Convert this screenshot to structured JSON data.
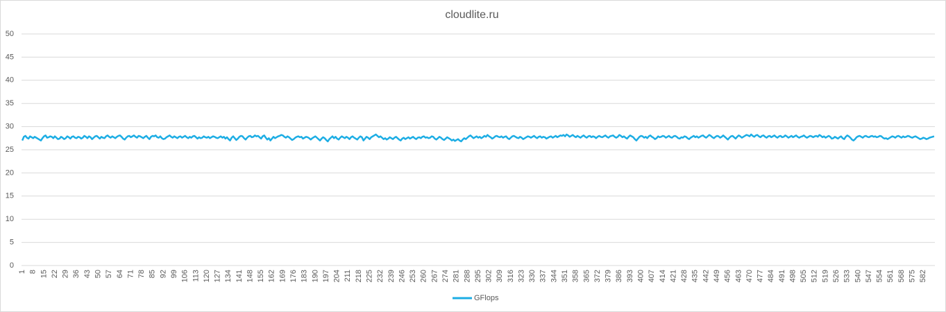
{
  "chart_data": {
    "type": "line",
    "title": "cloudlite.ru",
    "categories": [
      1,
      null,
      null,
      null,
      null,
      null,
      null,
      8,
      null,
      null,
      null,
      null,
      null,
      null,
      15,
      null,
      null,
      null,
      null,
      null,
      null,
      22,
      null,
      null,
      null,
      null,
      null,
      null,
      29,
      null,
      null,
      null,
      null,
      null,
      null,
      36,
      null,
      null,
      null,
      null,
      null,
      null,
      43,
      null,
      null,
      null,
      null,
      null,
      null,
      50,
      null,
      null,
      null,
      null,
      null,
      null,
      57,
      null,
      null,
      null,
      null,
      null,
      null,
      64,
      null,
      null,
      null,
      null,
      null,
      null,
      71,
      null,
      null,
      null,
      null,
      null,
      null,
      78,
      null,
      null,
      null,
      null,
      null,
      null,
      85,
      null,
      null,
      null,
      null,
      null,
      null,
      92,
      null,
      null,
      null,
      null,
      null,
      null,
      99,
      null,
      null,
      null,
      null,
      null,
      null,
      106,
      null,
      null,
      null,
      null,
      null,
      null,
      113,
      null,
      null,
      null,
      null,
      null,
      null,
      120,
      null,
      null,
      null,
      null,
      null,
      null,
      127,
      null,
      null,
      null,
      null,
      null,
      null,
      134,
      null,
      null,
      null,
      null,
      null,
      null,
      141,
      null,
      null,
      null,
      null,
      null,
      null,
      148,
      null,
      null,
      null,
      null,
      null,
      null,
      155,
      null,
      null,
      null,
      null,
      null,
      null,
      162,
      null,
      null,
      null,
      null,
      null,
      null,
      169,
      null,
      null,
      null,
      null,
      null,
      null,
      176,
      null,
      null,
      null,
      null,
      null,
      null,
      183,
      null,
      null,
      null,
      null,
      null,
      null,
      190,
      null,
      null,
      null,
      null,
      null,
      null,
      197,
      null,
      null,
      null,
      null,
      null,
      null,
      204,
      null,
      null,
      null,
      null,
      null,
      null,
      211,
      null,
      null,
      null,
      null,
      null,
      null,
      218,
      null,
      null,
      null,
      null,
      null,
      null,
      225,
      null,
      null,
      null,
      null,
      null,
      null,
      232,
      null,
      null,
      null,
      null,
      null,
      null,
      239,
      null,
      null,
      null,
      null,
      null,
      null,
      246,
      null,
      null,
      null,
      null,
      null,
      null,
      253,
      null,
      null,
      null,
      null,
      null,
      null,
      260,
      null,
      null,
      null,
      null,
      null,
      null,
      267,
      null,
      null,
      null,
      null,
      null,
      null,
      274,
      null,
      null,
      null,
      null,
      null,
      null,
      281,
      null,
      null,
      null,
      null,
      null,
      null,
      288,
      null,
      null,
      null,
      null,
      null,
      null,
      295,
      null,
      null,
      null,
      null,
      null,
      null,
      302,
      null,
      null,
      null,
      null,
      null,
      null,
      309,
      null,
      null,
      null,
      null,
      null,
      null,
      316,
      null,
      null,
      null,
      null,
      null,
      null,
      323,
      null,
      null,
      null,
      null,
      null,
      null,
      330,
      null,
      null,
      null,
      null,
      null,
      null,
      337,
      null,
      null,
      null,
      null,
      null,
      null,
      344,
      null,
      null,
      null,
      null,
      null,
      null,
      351,
      null,
      null,
      null,
      null,
      null,
      null,
      358,
      null,
      null,
      null,
      null,
      null,
      null,
      365,
      null,
      null,
      null,
      null,
      null,
      null,
      372,
      null,
      null,
      null,
      null,
      null,
      null,
      379,
      null,
      null,
      null,
      null,
      null,
      null,
      386,
      null,
      null,
      null,
      null,
      null,
      null,
      393,
      null,
      null,
      null,
      null,
      null,
      null,
      400,
      null,
      null,
      null,
      null,
      null,
      null,
      407,
      null,
      null,
      null,
      null,
      null,
      null,
      414,
      null,
      null,
      null,
      null,
      null,
      null,
      421,
      null,
      null,
      null,
      null,
      null,
      null,
      428,
      null,
      null,
      null,
      null,
      null,
      null,
      435,
      null,
      null,
      null,
      null,
      null,
      null,
      442,
      null,
      null,
      null,
      null,
      null,
      null,
      449,
      null,
      null,
      null,
      null,
      null,
      null,
      456,
      null,
      null,
      null,
      null,
      null,
      null,
      463,
      null,
      null,
      null,
      null,
      null,
      null,
      470,
      null,
      null,
      null,
      null,
      null,
      null,
      477,
      null,
      null,
      null,
      null,
      null,
      null,
      484,
      null,
      null,
      null,
      null,
      null,
      null,
      491,
      null,
      null,
      null,
      null,
      null,
      null,
      498,
      null,
      null,
      null,
      null,
      null,
      null,
      505,
      null,
      null,
      null,
      null,
      null,
      null,
      512,
      null,
      null,
      null,
      null,
      null,
      null,
      519,
      null,
      null,
      null,
      null,
      null,
      null,
      526,
      null,
      null,
      null,
      null,
      null,
      null,
      533,
      null,
      null,
      null,
      null,
      null,
      null,
      540,
      null,
      null,
      null,
      null,
      null,
      null,
      547,
      null,
      null,
      null,
      null,
      null,
      null,
      554,
      null,
      null,
      null,
      null,
      null,
      null,
      561,
      null,
      null,
      null,
      null,
      null,
      null,
      568,
      null,
      null,
      null,
      null,
      null,
      null,
      575,
      null,
      null,
      null,
      null,
      null,
      null,
      582,
      null,
      null,
      null,
      null,
      null,
      null,
      null
    ],
    "series": [
      {
        "name": "GFlops",
        "color": "#1cade4",
        "values": [
          27.0,
          27.8,
          28.0,
          27.6,
          27.4,
          27.9,
          27.7,
          27.5,
          27.8,
          27.6,
          27.4,
          27.2,
          27.0,
          27.5,
          27.9,
          28.1,
          27.6,
          27.7,
          27.9,
          27.8,
          27.5,
          27.9,
          27.6,
          27.3,
          27.4,
          27.8,
          27.6,
          27.3,
          27.5,
          27.9,
          27.7,
          27.4,
          27.8,
          27.9,
          27.6,
          27.5,
          27.8,
          27.7,
          27.4,
          27.6,
          28.0,
          27.8,
          27.5,
          27.9,
          27.7,
          27.3,
          27.6,
          27.9,
          28.0,
          27.7,
          27.4,
          27.8,
          27.6,
          27.5,
          27.9,
          28.1,
          27.8,
          27.6,
          27.9,
          27.7,
          27.5,
          27.8,
          28.0,
          28.1,
          27.8,
          27.4,
          27.2,
          27.6,
          27.9,
          28.0,
          27.7,
          27.9,
          28.1,
          27.8,
          27.6,
          28.0,
          27.9,
          27.7,
          27.5,
          27.8,
          28.0,
          27.6,
          27.3,
          27.8,
          28.0,
          27.9,
          28.1,
          27.7,
          27.6,
          27.9,
          27.5,
          27.3,
          27.4,
          27.7,
          27.9,
          28.1,
          27.8,
          27.6,
          27.9,
          27.7,
          27.5,
          27.8,
          27.9,
          27.6,
          27.8,
          28.0,
          27.7,
          27.5,
          27.8,
          27.6,
          27.9,
          28.0,
          27.7,
          27.4,
          27.7,
          27.5,
          27.6,
          27.9,
          27.7,
          27.6,
          27.8,
          27.5,
          27.7,
          27.9,
          27.8,
          27.6,
          27.5,
          27.7,
          27.9,
          27.6,
          27.8,
          27.4,
          27.7,
          27.3,
          27.0,
          27.6,
          27.9,
          27.5,
          27.1,
          27.4,
          27.8,
          28.0,
          27.9,
          27.5,
          27.2,
          27.6,
          27.9,
          28.0,
          27.7,
          27.8,
          28.1,
          27.9,
          28.0,
          27.7,
          27.4,
          27.9,
          28.1,
          27.6,
          27.2,
          27.5,
          27.0,
          27.4,
          27.8,
          27.5,
          27.7,
          27.9,
          28.0,
          28.2,
          28.1,
          27.8,
          27.6,
          27.9,
          27.7,
          27.4,
          27.1,
          27.3,
          27.6,
          27.8,
          27.9,
          27.7,
          27.8,
          27.4,
          27.6,
          27.8,
          27.7,
          27.5,
          27.2,
          27.5,
          27.7,
          27.9,
          27.6,
          27.3,
          27.0,
          27.4,
          27.7,
          27.5,
          27.1,
          26.8,
          27.3,
          27.6,
          27.9,
          27.5,
          27.8,
          27.4,
          27.2,
          27.6,
          27.9,
          27.7,
          27.5,
          27.8,
          27.6,
          27.3,
          27.7,
          27.9,
          27.6,
          27.4,
          27.2,
          27.6,
          27.9,
          27.7,
          27.0,
          27.4,
          27.8,
          27.6,
          27.3,
          27.7,
          27.9,
          28.1,
          28.3,
          28.0,
          27.7,
          27.9,
          27.6,
          27.3,
          27.5,
          27.2,
          27.4,
          27.7,
          27.5,
          27.3,
          27.6,
          27.8,
          27.5,
          27.2,
          27.0,
          27.4,
          27.6,
          27.3,
          27.5,
          27.7,
          27.4,
          27.6,
          27.8,
          27.5,
          27.3,
          27.6,
          27.7,
          27.5,
          27.8,
          27.9,
          27.6,
          27.7,
          27.5,
          27.6,
          27.9,
          27.8,
          27.4,
          27.2,
          27.5,
          27.8,
          27.6,
          27.3,
          27.1,
          27.4,
          27.7,
          27.5,
          27.3,
          27.0,
          27.2,
          26.9,
          27.1,
          27.3,
          27.0,
          26.8,
          27.2,
          27.5,
          27.3,
          27.6,
          27.9,
          28.1,
          27.8,
          27.5,
          27.7,
          27.9,
          27.6,
          27.8,
          27.5,
          27.7,
          28.0,
          27.8,
          28.2,
          27.9,
          27.7,
          27.4,
          27.6,
          27.9,
          28.0,
          27.8,
          27.7,
          27.9,
          27.6,
          27.8,
          27.9,
          27.5,
          27.3,
          27.6,
          27.9,
          28.0,
          27.8,
          27.6,
          27.5,
          27.8,
          27.6,
          27.3,
          27.5,
          27.7,
          27.9,
          27.8,
          27.6,
          27.8,
          28.0,
          27.7,
          27.5,
          27.8,
          27.9,
          27.6,
          27.8,
          27.7,
          27.4,
          27.6,
          27.8,
          27.9,
          27.6,
          27.8,
          28.0,
          27.7,
          27.9,
          28.1,
          28.0,
          28.2,
          27.9,
          28.3,
          28.1,
          27.8,
          28.0,
          28.2,
          27.9,
          27.7,
          28.0,
          27.8,
          27.6,
          27.9,
          28.1,
          27.8,
          27.6,
          27.9,
          28.0,
          27.7,
          27.9,
          27.8,
          27.5,
          27.8,
          28.0,
          27.8,
          27.7,
          27.9,
          28.1,
          27.8,
          27.6,
          27.9,
          28.0,
          28.1,
          27.8,
          27.6,
          27.8,
          28.2,
          28.0,
          27.7,
          27.9,
          27.6,
          27.4,
          27.8,
          28.1,
          27.9,
          27.7,
          27.3,
          27.0,
          27.4,
          27.8,
          28.0,
          27.9,
          27.6,
          27.8,
          27.5,
          27.9,
          28.1,
          27.8,
          27.6,
          27.3,
          27.5,
          27.9,
          27.7,
          27.8,
          28.0,
          27.9,
          27.6,
          27.8,
          28.0,
          27.7,
          27.6,
          27.9,
          28.0,
          27.8,
          27.5,
          27.4,
          27.7,
          27.6,
          27.9,
          27.8,
          27.5,
          27.3,
          27.6,
          27.8,
          28.0,
          27.7,
          27.9,
          27.6,
          27.8,
          28.0,
          28.1,
          27.8,
          27.6,
          27.9,
          28.2,
          28.0,
          27.7,
          27.5,
          27.8,
          28.0,
          27.9,
          27.6,
          27.8,
          28.1,
          27.8,
          27.5,
          27.2,
          27.6,
          27.9,
          28.0,
          27.7,
          27.4,
          27.8,
          28.1,
          27.9,
          27.6,
          27.8,
          28.0,
          28.2,
          28.1,
          27.9,
          28.3,
          28.0,
          27.8,
          28.1,
          28.2,
          27.9,
          27.7,
          28.0,
          28.1,
          27.8,
          27.6,
          27.9,
          28.0,
          27.7,
          27.9,
          28.1,
          27.8,
          27.6,
          27.9,
          28.0,
          27.7,
          27.8,
          28.1,
          27.9,
          27.6,
          27.8,
          28.0,
          27.7,
          27.9,
          28.1,
          27.8,
          27.6,
          27.8,
          27.9,
          28.1,
          27.8,
          27.6,
          27.8,
          28.0,
          27.9,
          27.7,
          27.9,
          28.0,
          27.8,
          28.2,
          28.0,
          27.7,
          27.9,
          27.6,
          27.8,
          28.0,
          27.8,
          27.4,
          27.5,
          27.8,
          27.6,
          27.4,
          27.7,
          27.9,
          27.5,
          27.3,
          27.8,
          28.1,
          27.9,
          27.6,
          27.2,
          27.0,
          27.3,
          27.7,
          27.9,
          28.0,
          27.8,
          27.6,
          27.9,
          28.0,
          27.8,
          27.7,
          27.9,
          28.0,
          27.8,
          27.9,
          27.7,
          27.8,
          28.0,
          27.9,
          27.6,
          27.4,
          27.5,
          27.3,
          27.5,
          27.7,
          27.9,
          27.8,
          27.6,
          27.9,
          28.0,
          27.8,
          27.6,
          27.9,
          27.7,
          27.8,
          28.0,
          27.9,
          27.7,
          27.6,
          27.8,
          27.9,
          27.7,
          27.5,
          27.3,
          27.4,
          27.6,
          27.5,
          27.3,
          27.4,
          27.6,
          27.7,
          27.8,
          27.9
        ]
      }
    ],
    "ylim": [
      0,
      50
    ],
    "yticks": [
      0,
      5,
      10,
      15,
      20,
      25,
      30,
      35,
      40,
      45,
      50
    ],
    "grid": true,
    "legend": "bottom"
  }
}
